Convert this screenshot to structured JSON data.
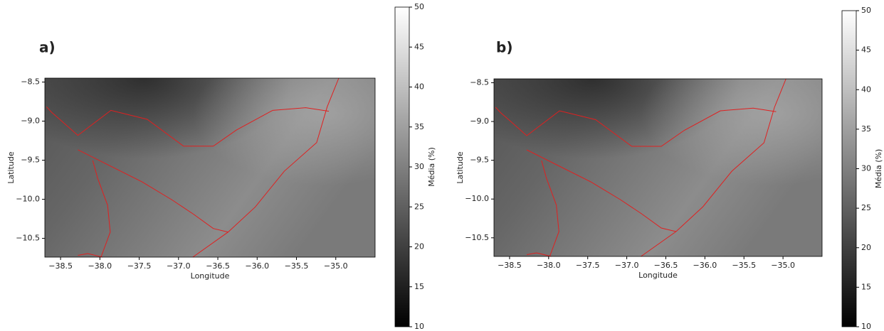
{
  "chart_data": [
    {
      "type": "map",
      "panel_label": "a)",
      "x_label": "Longitude",
      "y_label": "Latitude",
      "xlim": [
        -38.7,
        -34.5
      ],
      "ylim": [
        -10.74,
        -8.45
      ],
      "xticks": [
        {
          "value": -38.5,
          "label": "−38.5"
        },
        {
          "value": -38.0,
          "label": "−38.0"
        },
        {
          "value": -37.5,
          "label": "−37.5"
        },
        {
          "value": -37.0,
          "label": "−37.0"
        },
        {
          "value": -36.5,
          "label": "−36.5"
        },
        {
          "value": -36.0,
          "label": "−36.0"
        },
        {
          "value": -35.5,
          "label": "−35.5"
        },
        {
          "value": -35.0,
          "label": "−35.0"
        }
      ],
      "yticks": [
        {
          "value": -8.5,
          "label": "−8.5"
        },
        {
          "value": -9.0,
          "label": "−9.0"
        },
        {
          "value": -9.5,
          "label": "−9.5"
        },
        {
          "value": -10.0,
          "label": "−10.0"
        },
        {
          "value": -10.5,
          "label": "−10.5"
        }
      ],
      "colorbar_label": "Média (%)",
      "clim": [
        10,
        50
      ],
      "colorbar_ticks": [
        10,
        15,
        20,
        25,
        30,
        35,
        40,
        45,
        50
      ],
      "border_color": "#e02020"
    },
    {
      "type": "map",
      "panel_label": "b)",
      "x_label": "Longitude",
      "y_label": "Latitude",
      "xlim": [
        -38.7,
        -34.5
      ],
      "ylim": [
        -10.74,
        -8.45
      ],
      "xticks": [
        {
          "value": -38.5,
          "label": "−38.5"
        },
        {
          "value": -38.0,
          "label": "−38.0"
        },
        {
          "value": -37.5,
          "label": "−37.5"
        },
        {
          "value": -37.0,
          "label": "−37.0"
        },
        {
          "value": -36.5,
          "label": "−36.5"
        },
        {
          "value": -36.0,
          "label": "−36.0"
        },
        {
          "value": -35.5,
          "label": "−35.5"
        },
        {
          "value": -35.0,
          "label": "−35.0"
        }
      ],
      "yticks": [
        {
          "value": -8.5,
          "label": "−8.5"
        },
        {
          "value": -9.0,
          "label": "−9.0"
        },
        {
          "value": -9.5,
          "label": "−9.5"
        },
        {
          "value": -10.0,
          "label": "−10.0"
        },
        {
          "value": -10.5,
          "label": "−10.5"
        }
      ],
      "colorbar_label": "Média (%)",
      "clim": [
        10,
        50
      ],
      "colorbar_ticks": [
        10,
        15,
        20,
        25,
        30,
        35,
        40,
        45,
        50
      ],
      "border_color": "#e02020"
    }
  ]
}
